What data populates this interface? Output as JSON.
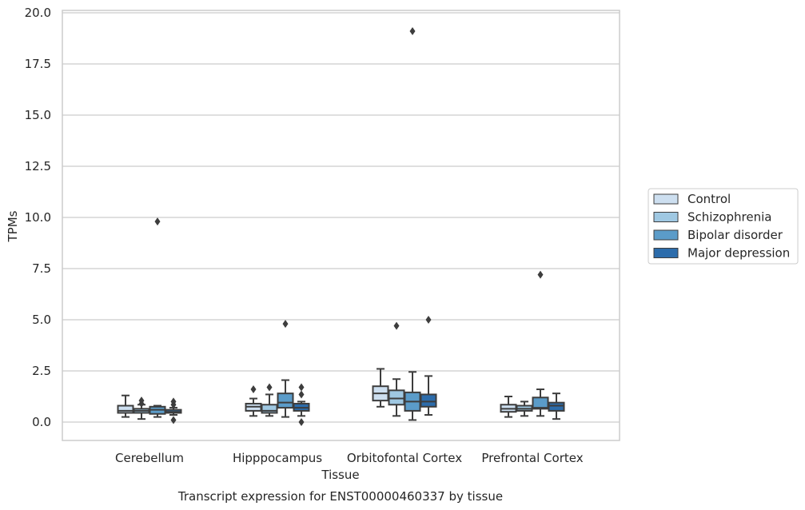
{
  "chart_data": {
    "type": "box",
    "title": "",
    "caption": "Transcript expression for ENST00000460337 by tissue",
    "xlabel": "Tissue",
    "ylabel": "TPMs",
    "ylim": [
      -0.9,
      20.1
    ],
    "yticks": [
      "0.0",
      "2.5",
      "5.0",
      "7.5",
      "10.0",
      "12.5",
      "15.0",
      "17.5",
      "20.0"
    ],
    "ytick_values": [
      0,
      2.5,
      5,
      7.5,
      10,
      12.5,
      15,
      17.5,
      20
    ],
    "grid": "horizontal",
    "legend_position": "right",
    "categories": [
      "Cerebellum",
      "Hipppocampus",
      "Orbitofontal Cortex",
      "Prefrontal Cortex"
    ],
    "series": [
      {
        "name": "Control",
        "color": "#cddff0",
        "boxes": [
          {
            "whislo": 0.25,
            "q1": 0.45,
            "med": 0.55,
            "q3": 0.8,
            "whishi": 1.3,
            "fliers": []
          },
          {
            "whislo": 0.3,
            "q1": 0.55,
            "med": 0.75,
            "q3": 0.9,
            "whishi": 1.15,
            "fliers": [
              1.6
            ]
          },
          {
            "whislo": 0.75,
            "q1": 1.05,
            "med": 1.4,
            "q3": 1.75,
            "whishi": 2.6,
            "fliers": []
          },
          {
            "whislo": 0.25,
            "q1": 0.5,
            "med": 0.65,
            "q3": 0.85,
            "whishi": 1.25,
            "fliers": []
          }
        ]
      },
      {
        "name": "Schizophrenia",
        "color": "#9fc8e2",
        "boxes": [
          {
            "whislo": 0.15,
            "q1": 0.45,
            "med": 0.55,
            "q3": 0.65,
            "whishi": 0.85,
            "fliers": [
              0.9,
              1.05
            ]
          },
          {
            "whislo": 0.3,
            "q1": 0.45,
            "med": 0.55,
            "q3": 0.85,
            "whishi": 1.35,
            "fliers": [
              1.7
            ]
          },
          {
            "whislo": 0.3,
            "q1": 0.85,
            "med": 1.15,
            "q3": 1.55,
            "whishi": 2.1,
            "fliers": [
              4.7
            ]
          },
          {
            "whislo": 0.3,
            "q1": 0.55,
            "med": 0.65,
            "q3": 0.8,
            "whishi": 1.0,
            "fliers": []
          }
        ]
      },
      {
        "name": "Bipolar disorder",
        "color": "#5b9cc9",
        "boxes": [
          {
            "whislo": 0.25,
            "q1": 0.4,
            "med": 0.6,
            "q3": 0.75,
            "whishi": 0.8,
            "fliers": [
              9.8
            ]
          },
          {
            "whislo": 0.25,
            "q1": 0.7,
            "med": 0.95,
            "q3": 1.4,
            "whishi": 2.05,
            "fliers": [
              4.8
            ]
          },
          {
            "whislo": 0.1,
            "q1": 0.55,
            "med": 1.0,
            "q3": 1.45,
            "whishi": 2.45,
            "fliers": [
              19.1
            ]
          },
          {
            "whislo": 0.3,
            "q1": 0.65,
            "med": 0.7,
            "q3": 1.2,
            "whishi": 1.6,
            "fliers": [
              7.2
            ]
          }
        ]
      },
      {
        "name": "Major depression",
        "color": "#2c6cab",
        "boxes": [
          {
            "whislo": 0.35,
            "q1": 0.45,
            "med": 0.5,
            "q3": 0.6,
            "whishi": 0.7,
            "fliers": [
              0.1,
              0.85,
              1.0
            ]
          },
          {
            "whislo": 0.3,
            "q1": 0.55,
            "med": 0.7,
            "q3": 0.9,
            "whishi": 1.0,
            "fliers": [
              0.0,
              1.35,
              1.7
            ]
          },
          {
            "whislo": 0.35,
            "q1": 0.75,
            "med": 1.0,
            "q3": 1.35,
            "whishi": 2.25,
            "fliers": [
              5.0
            ]
          },
          {
            "whislo": 0.15,
            "q1": 0.55,
            "med": 0.8,
            "q3": 0.95,
            "whishi": 1.4,
            "fliers": []
          }
        ]
      }
    ]
  }
}
